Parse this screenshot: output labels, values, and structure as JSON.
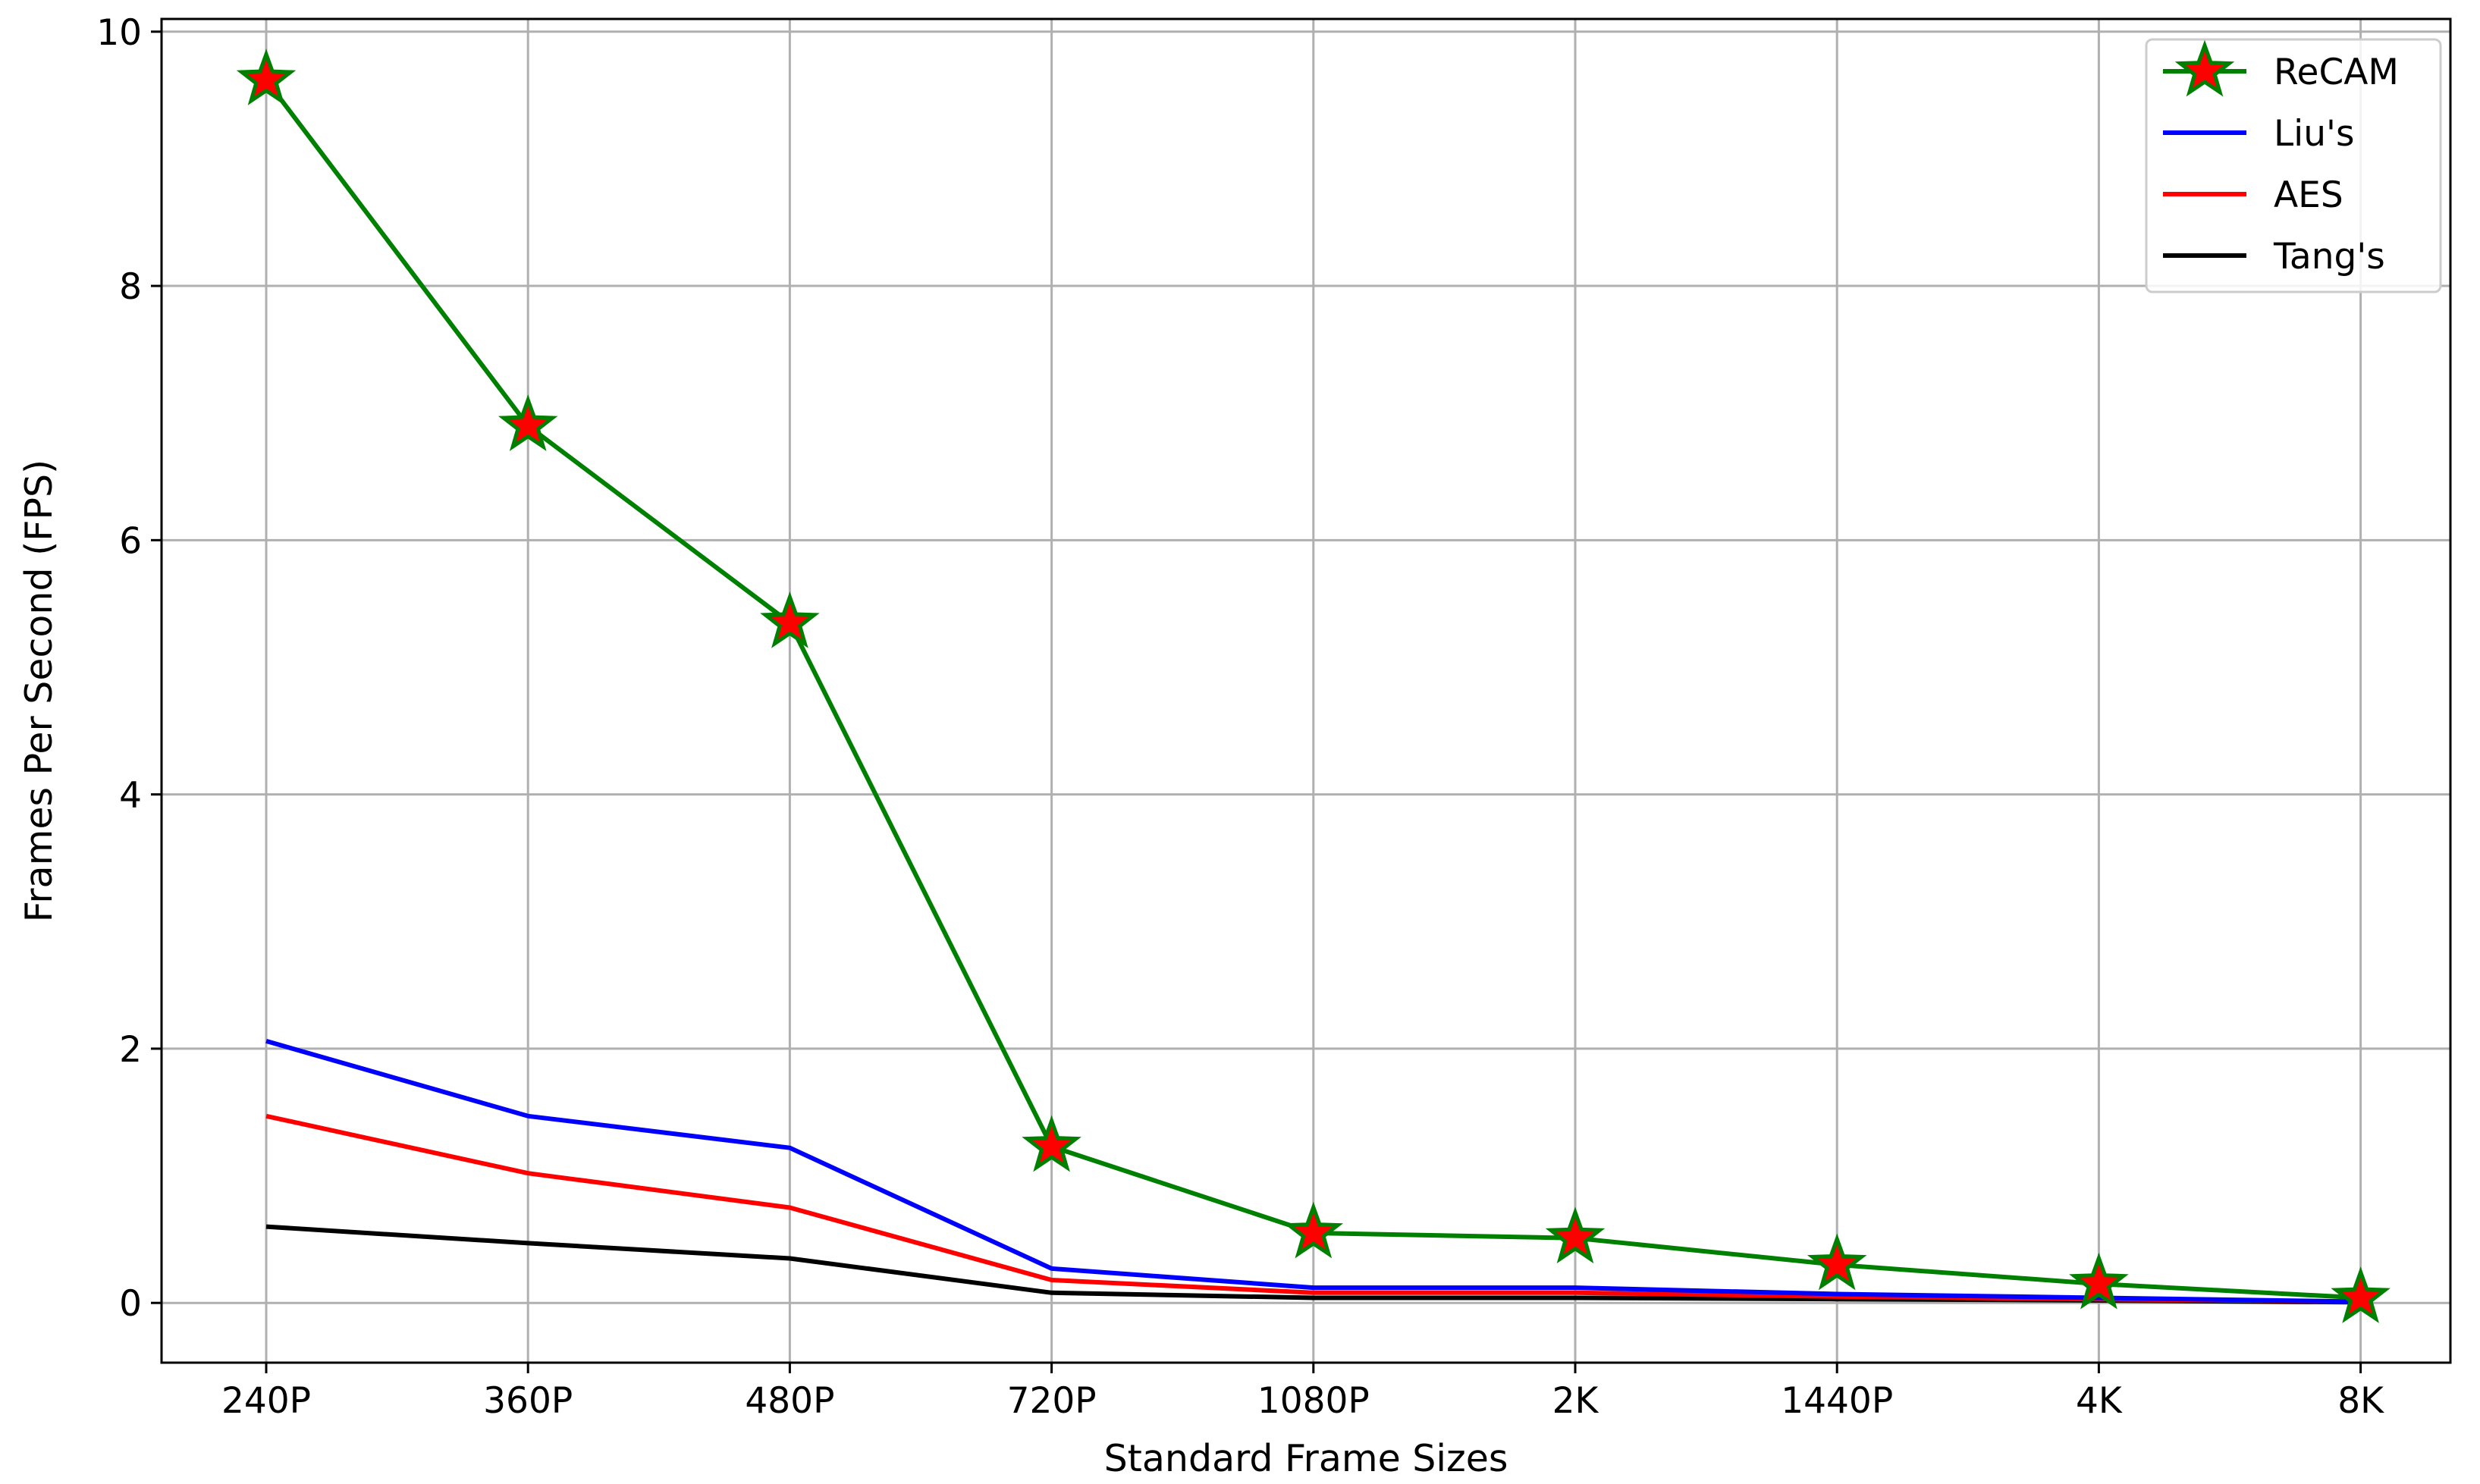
{
  "chart_data": {
    "type": "line",
    "title": "",
    "xlabel": "Standard Frame Sizes",
    "ylabel": "Frames Per Second (FPS)",
    "categories": [
      "240P",
      "360P",
      "480P",
      "720P",
      "1080P",
      "2K",
      "1440P",
      "4K",
      "8K"
    ],
    "ylim": [
      -0.47,
      10.1
    ],
    "yticks": [
      0,
      2,
      4,
      6,
      8,
      10
    ],
    "ytick_labels": [
      "0",
      "2",
      "4",
      "6",
      "8",
      "10"
    ],
    "grid": true,
    "legend_position": "top-right",
    "series": [
      {
        "name": "ReCAM",
        "color": "#008000",
        "marker": "star",
        "marker_fill": "#ff0000",
        "values": [
          9.62,
          6.9,
          5.35,
          1.23,
          0.55,
          0.51,
          0.3,
          0.15,
          0.04
        ]
      },
      {
        "name": "Liu's",
        "color": "#0000ff",
        "marker": "none",
        "values": [
          2.06,
          1.47,
          1.22,
          0.27,
          0.12,
          0.12,
          0.07,
          0.04,
          0.01
        ]
      },
      {
        "name": "AES",
        "color": "#ff0000",
        "marker": "none",
        "values": [
          1.47,
          1.02,
          0.75,
          0.18,
          0.08,
          0.08,
          0.05,
          0.03,
          0.01
        ]
      },
      {
        "name": "Tang's",
        "color": "#000000",
        "marker": "none",
        "values": [
          0.6,
          0.47,
          0.35,
          0.08,
          0.04,
          0.04,
          0.03,
          0.02,
          0.005
        ]
      }
    ]
  }
}
